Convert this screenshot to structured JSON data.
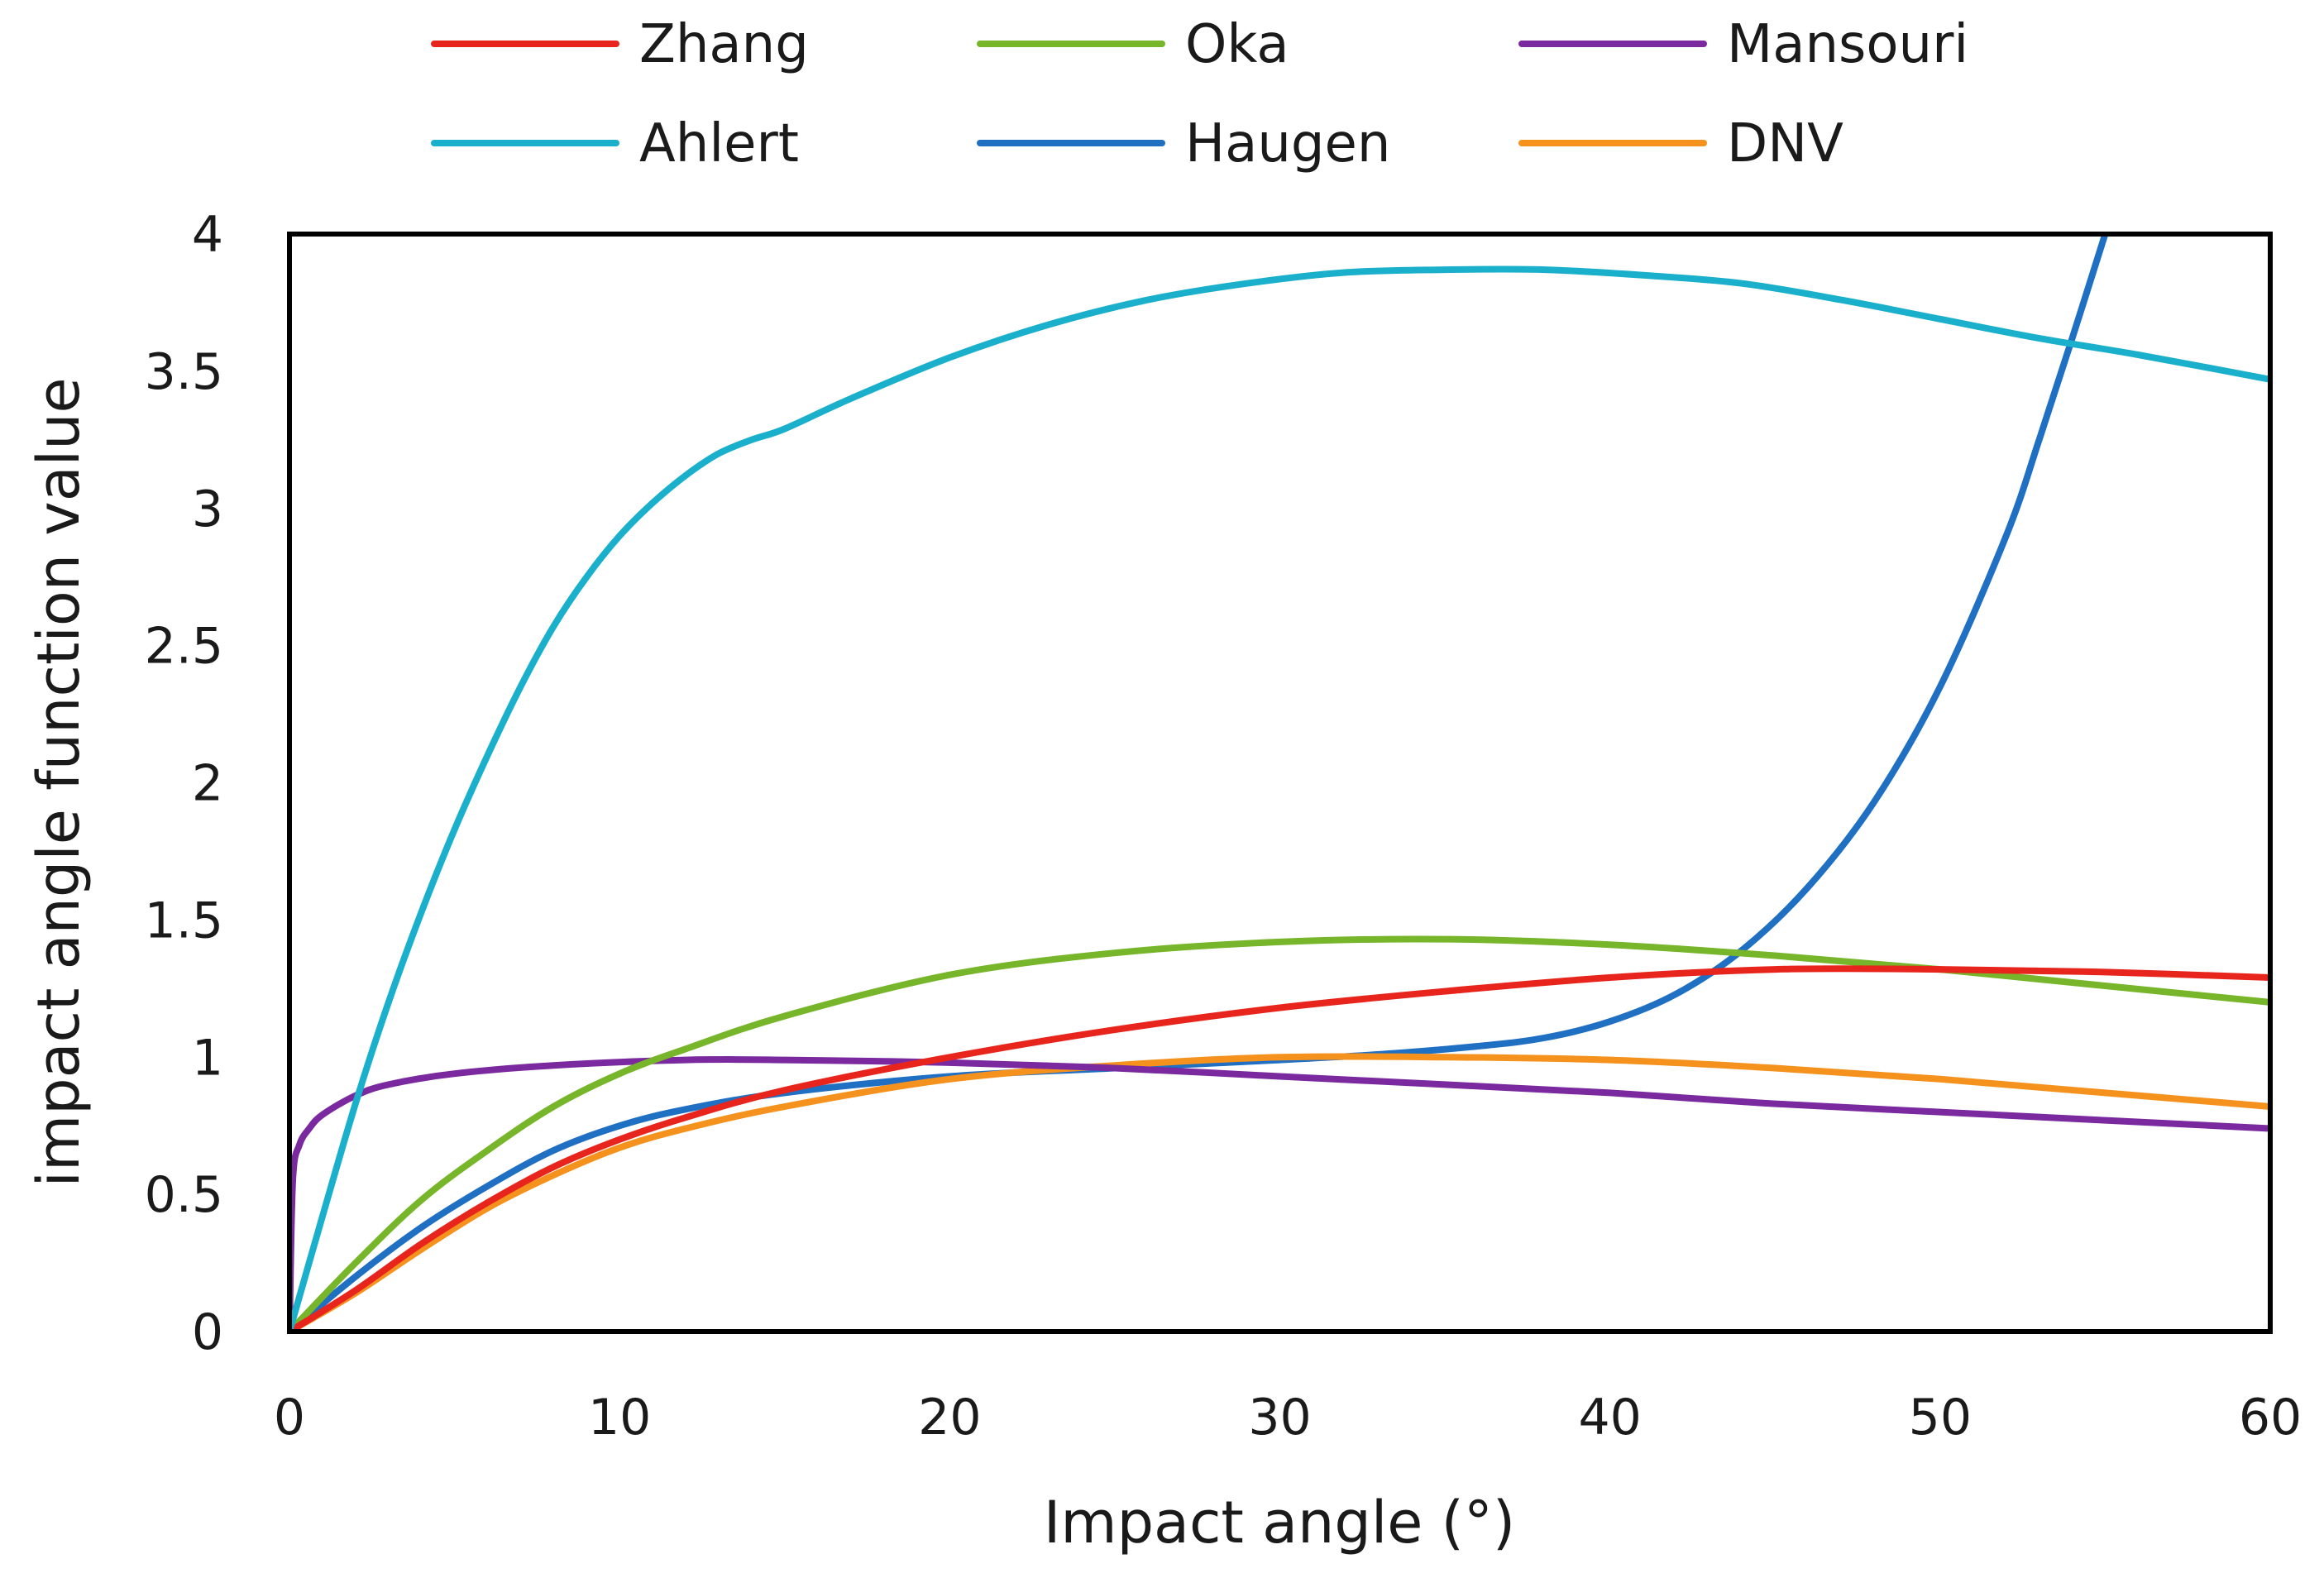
{
  "chart_data": {
    "type": "line",
    "title": "",
    "xlabel": "Impact angle (°)",
    "ylabel": "impact angle function value",
    "xlim": [
      0,
      60
    ],
    "ylim": [
      0,
      4
    ],
    "xticks": [
      0,
      10,
      20,
      30,
      40,
      50,
      60
    ],
    "yticks": [
      0,
      0.5,
      1,
      1.5,
      2,
      2.5,
      3,
      3.5,
      4
    ],
    "ytick_labels": [
      "0",
      "0.5",
      "1",
      "1.5",
      "2",
      "2.5",
      "3",
      "3.5",
      "4"
    ],
    "grid": false,
    "legend_position": "top",
    "series": [
      {
        "name": "Zhang",
        "color": "#e8251d",
        "x": [
          0,
          2,
          4,
          6,
          8,
          10,
          12,
          15,
          20,
          25,
          30,
          35,
          40,
          45,
          50,
          55,
          60
        ],
        "y": [
          0,
          0.15,
          0.32,
          0.47,
          0.6,
          0.7,
          0.78,
          0.88,
          1.0,
          1.1,
          1.18,
          1.24,
          1.29,
          1.32,
          1.32,
          1.31,
          1.29
        ]
      },
      {
        "name": "Oka",
        "color": "#77b62a",
        "x": [
          0,
          2,
          4,
          6,
          8,
          10,
          12,
          15,
          20,
          25,
          30,
          35,
          40,
          45,
          50,
          55,
          60
        ],
        "y": [
          0,
          0.25,
          0.48,
          0.66,
          0.82,
          0.94,
          1.03,
          1.15,
          1.3,
          1.38,
          1.42,
          1.43,
          1.41,
          1.37,
          1.32,
          1.26,
          1.2
        ]
      },
      {
        "name": "Mansouri",
        "color": "#7a2a9e",
        "x": [
          0,
          0.1,
          0.3,
          0.6,
          1,
          2,
          3,
          5,
          8,
          12,
          15,
          20,
          25,
          30,
          35,
          40,
          45,
          50,
          55,
          60
        ],
        "y": [
          0,
          0.55,
          0.68,
          0.74,
          0.79,
          0.86,
          0.9,
          0.94,
          0.97,
          0.99,
          0.99,
          0.98,
          0.96,
          0.93,
          0.9,
          0.87,
          0.83,
          0.8,
          0.77,
          0.74
        ]
      },
      {
        "name": "Ahlert",
        "color": "#1ab0cc",
        "x": [
          0,
          1,
          2,
          3,
          4,
          5,
          6,
          7,
          8,
          9,
          10,
          11,
          12,
          13,
          14,
          15,
          17,
          20,
          23,
          26,
          29,
          32,
          35,
          38,
          41,
          44,
          47,
          50,
          53,
          56,
          60
        ],
        "y": [
          0,
          0.42,
          0.83,
          1.2,
          1.53,
          1.83,
          2.1,
          2.35,
          2.57,
          2.75,
          2.9,
          3.02,
          3.12,
          3.2,
          3.25,
          3.29,
          3.4,
          3.55,
          3.67,
          3.76,
          3.82,
          3.86,
          3.87,
          3.87,
          3.85,
          3.82,
          3.76,
          3.69,
          3.62,
          3.56,
          3.47
        ]
      },
      {
        "name": "Haugen",
        "color": "#1f6fc3",
        "x": [
          0,
          2,
          4,
          6,
          8,
          10,
          12,
          15,
          20,
          25,
          30,
          33,
          36,
          38,
          40,
          42,
          44,
          46,
          48,
          50,
          52,
          53,
          54,
          55
        ],
        "y": [
          0,
          0.2,
          0.38,
          0.53,
          0.66,
          0.75,
          0.81,
          0.87,
          0.93,
          0.96,
          0.99,
          1.01,
          1.04,
          1.07,
          1.13,
          1.23,
          1.39,
          1.62,
          1.93,
          2.35,
          2.9,
          3.25,
          3.62,
          4.0
        ]
      },
      {
        "name": "DNV",
        "color": "#f5921e",
        "x": [
          0,
          2,
          4,
          6,
          8,
          10,
          12,
          15,
          20,
          25,
          30,
          35,
          40,
          45,
          50,
          55,
          60
        ],
        "y": [
          0,
          0.14,
          0.3,
          0.45,
          0.57,
          0.67,
          0.74,
          0.82,
          0.92,
          0.97,
          1.0,
          1.0,
          0.99,
          0.96,
          0.92,
          0.87,
          0.82
        ]
      }
    ]
  }
}
